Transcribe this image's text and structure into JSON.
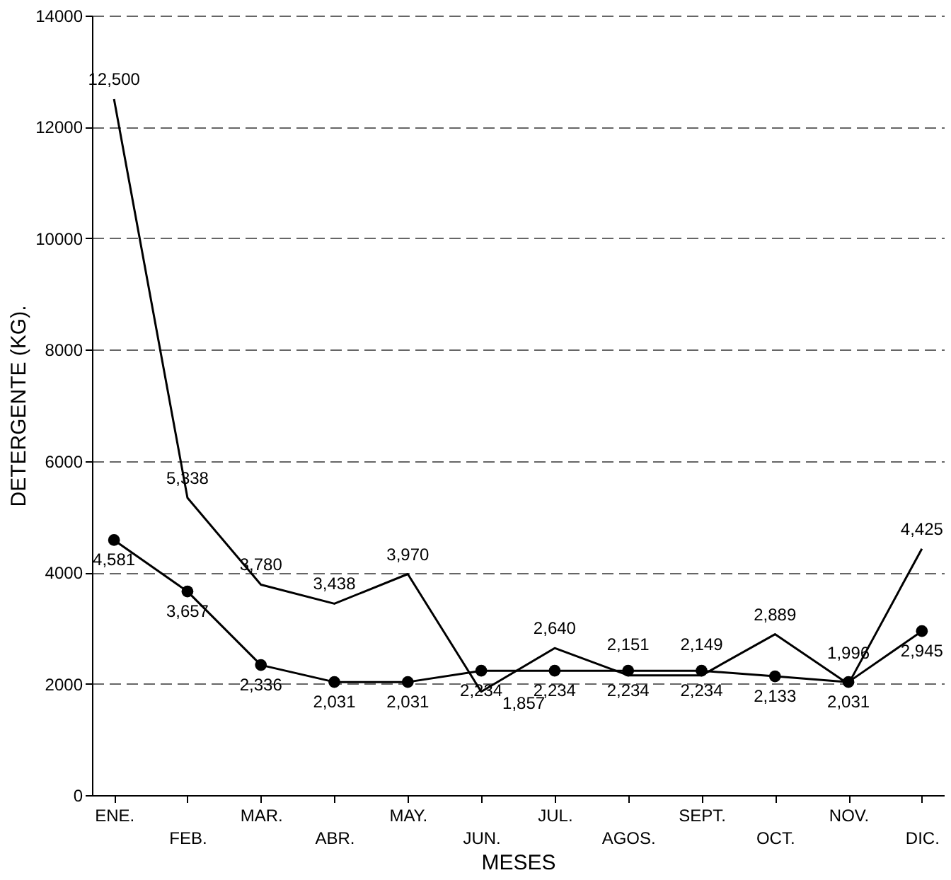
{
  "chart_data": {
    "type": "line",
    "xlabel": "MESES",
    "ylabel": "DETERGENTE (KG).",
    "categories": [
      "ENE.",
      "FEB.",
      "MAR.",
      "ABR.",
      "MAY.",
      "JUN.",
      "JUL.",
      "AGOS.",
      "SEPT.",
      "OCT.",
      "NOV.",
      "DIC."
    ],
    "series": [
      {
        "color": "#000000",
        "marker": "none",
        "values": [
          12500,
          5338,
          3780,
          3438,
          3970,
          1857,
          2640,
          2151,
          2149,
          2889,
          1996,
          4425
        ],
        "value_labels": [
          "12,500",
          "5,338",
          "3,780",
          "3,438",
          "3,970",
          "1,857",
          "2,640",
          "2,151",
          "2,149",
          "2,889",
          "1,996",
          "4,425"
        ]
      },
      {
        "color": "#000000",
        "marker": "circle",
        "values": [
          4581,
          3657,
          2336,
          2031,
          2031,
          2234,
          2234,
          2234,
          2234,
          2133,
          2031,
          2945
        ],
        "value_labels": [
          "4,581",
          "3,657",
          "2,336",
          "2,031",
          "2,031",
          "2,234",
          "2,234",
          "2,234",
          "2,234",
          "2,133",
          "2,031",
          "2,945"
        ]
      }
    ],
    "ylim": [
      0,
      14000
    ],
    "yticks": [
      0,
      2000,
      4000,
      6000,
      8000,
      10000,
      12000,
      14000
    ],
    "grid": "y",
    "line_style": "solid"
  }
}
